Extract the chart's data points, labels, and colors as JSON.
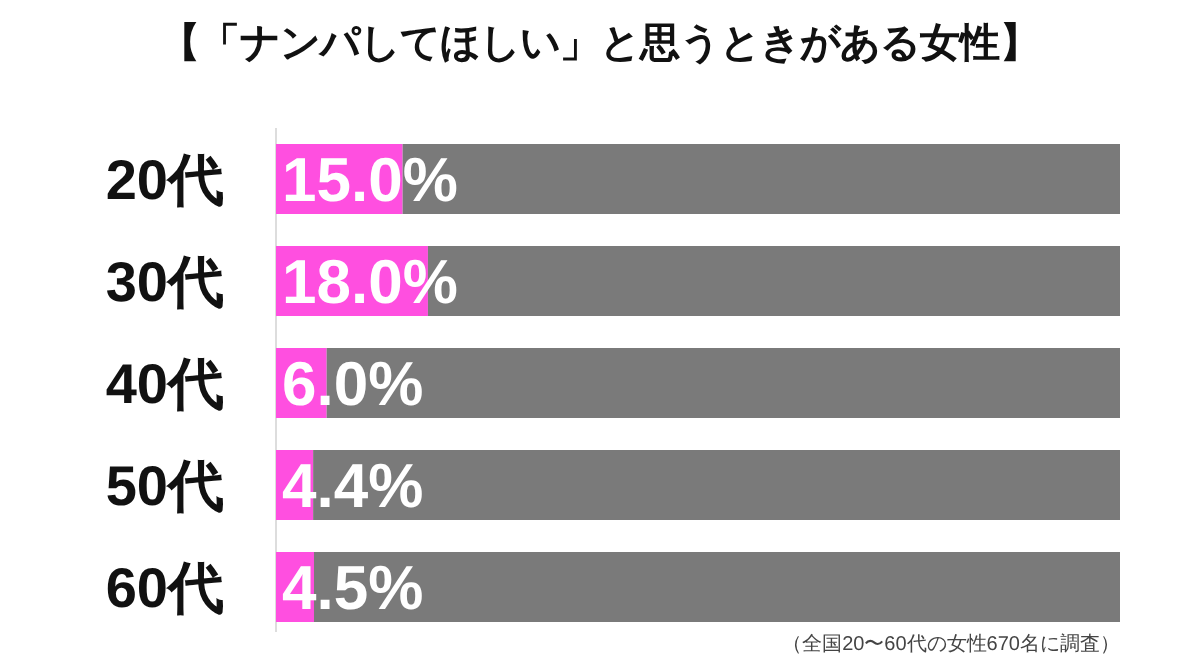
{
  "chart_data": {
    "type": "bar",
    "orientation": "horizontal",
    "stacked": true,
    "title": "【「ナンパしてほしい」と思うときがある女性】",
    "categories": [
      "20代",
      "30代",
      "40代",
      "50代",
      "60代"
    ],
    "series": [
      {
        "color": "#ff4fe0",
        "values": [
          15.0,
          18.0,
          6.0,
          4.4,
          4.5
        ],
        "value_labels": [
          "15.0%",
          "18.0%",
          "6.0%",
          "4.4%",
          "4.5%"
        ]
      },
      {
        "color": "#7a7a7a",
        "values": [
          85.0,
          82.0,
          94.0,
          95.6,
          95.5
        ]
      }
    ],
    "xlim": [
      0,
      100
    ],
    "tick_labels": "y",
    "annotations": [
      "（全国20〜60代の女性670名に調査）"
    ]
  }
}
